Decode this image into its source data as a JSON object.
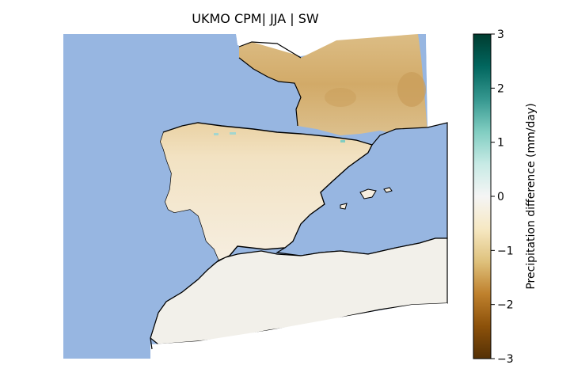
{
  "title": "UKMO CPM| JJA | SW",
  "colorbar": {
    "label": "Precipitation difference (mm/day)",
    "min": -3,
    "max": 3,
    "ticks": [
      {
        "value": 3,
        "label": "3"
      },
      {
        "value": 2,
        "label": "2"
      },
      {
        "value": 1,
        "label": "1"
      },
      {
        "value": 0,
        "label": "0"
      },
      {
        "value": -1,
        "label": "−1"
      },
      {
        "value": -2,
        "label": "−2"
      },
      {
        "value": -3,
        "label": "−3"
      }
    ],
    "colormap": "BrBG",
    "colors": [
      "#543005",
      "#8c510a",
      "#bf812d",
      "#dfc27d",
      "#f6e8c3",
      "#f5f5f5",
      "#c7eae5",
      "#80cdc1",
      "#35978f",
      "#01665e",
      "#003c30"
    ]
  },
  "map": {
    "region": "SW Europe (France, Iberian Peninsula, Morocco)",
    "ocean_color": "#97b6e1",
    "regions": [
      {
        "name": "France",
        "color": "#d6b072"
      },
      {
        "name": "Northern Spain",
        "color": "#f0dfb8"
      },
      {
        "name": "Iberia",
        "color": "#f6ecd8"
      },
      {
        "name": "North Africa",
        "color": "#f3f1ec"
      }
    ]
  }
}
